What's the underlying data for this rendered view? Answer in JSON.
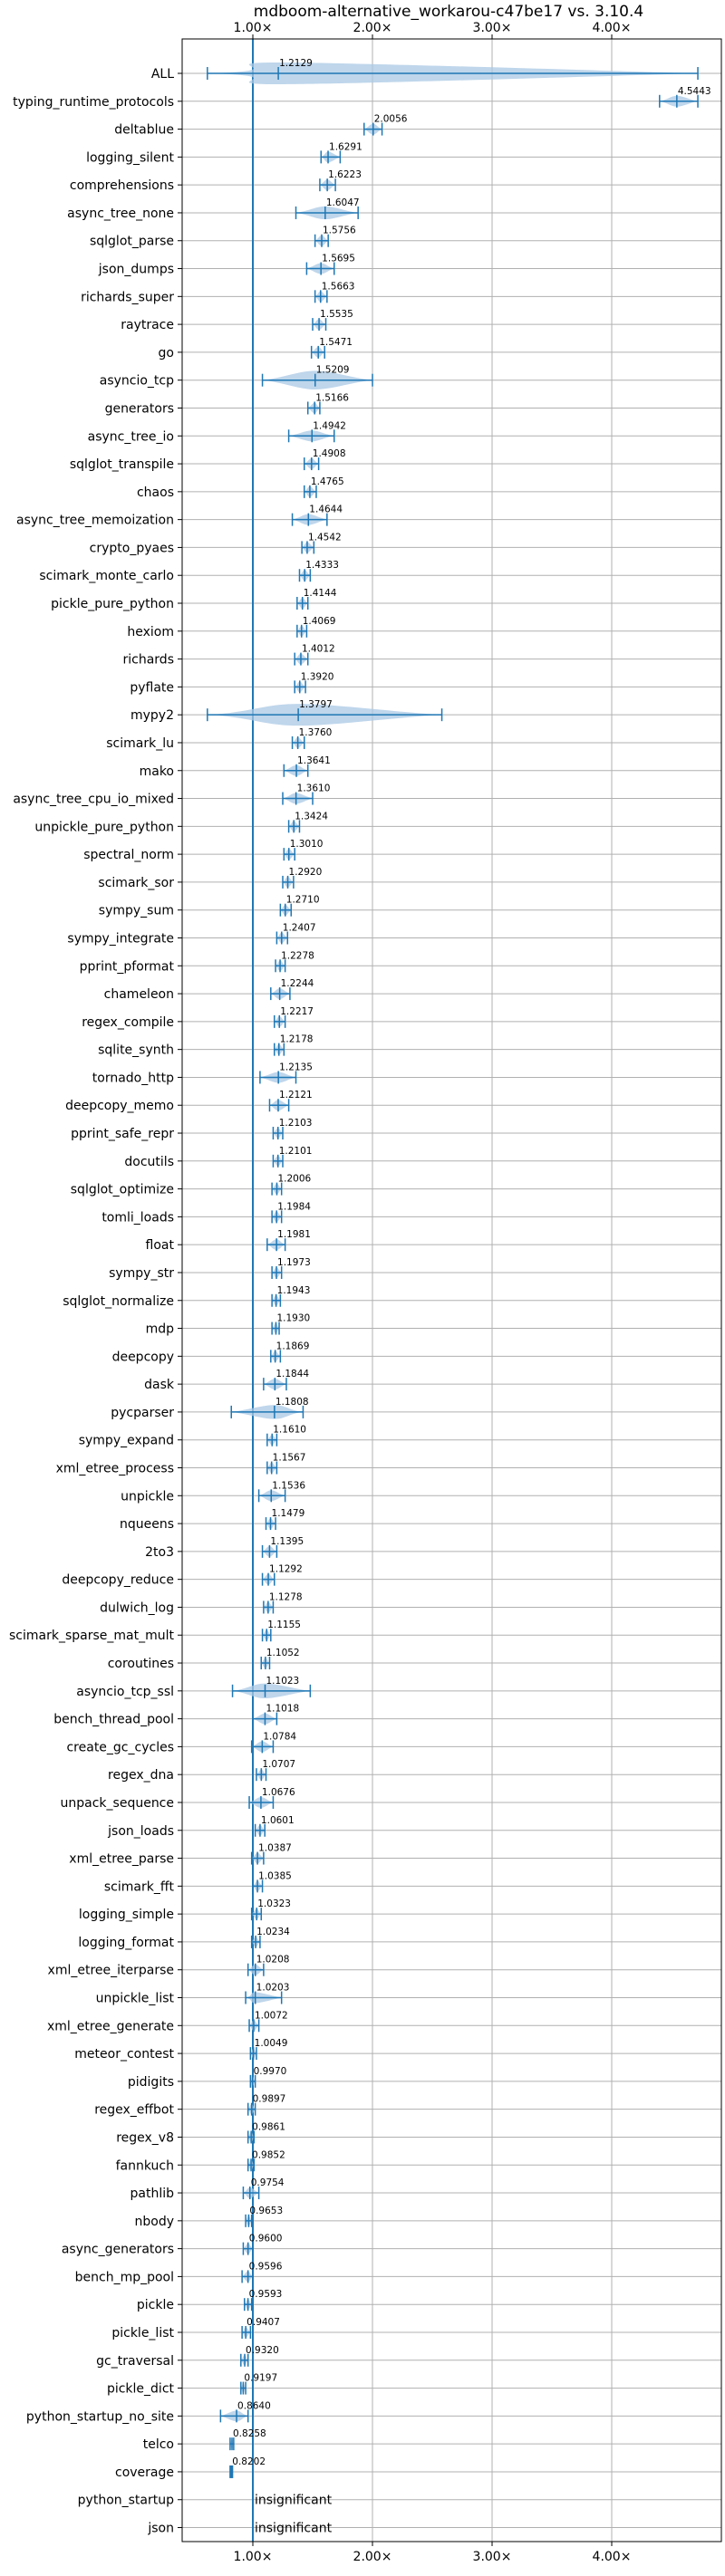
{
  "chart_data": {
    "type": "violin",
    "title": "mdboom-alternative_workarou-c47be17 vs. 3.10.4",
    "xlabel": "",
    "ylabel": "",
    "xlim": [
      0.55,
      4.6
    ],
    "x_ticks": [
      1.0,
      2.0,
      3.0,
      4.0
    ],
    "x_tick_labels": [
      "1.00×",
      "2.00×",
      "3.00×",
      "4.00×"
    ],
    "reference_line": 1.0,
    "grid": true,
    "insignificant_label": "insignificant",
    "benchmarks": [
      {
        "name": "ALL",
        "value": "1.2129",
        "center": 1.2129,
        "low": 0.62,
        "high": 4.72
      },
      {
        "name": "typing_runtime_protocols",
        "value": "4.5443",
        "center": 4.5443,
        "low": 4.4,
        "high": 4.72
      },
      {
        "name": "deltablue",
        "value": "2.0056",
        "center": 2.0056,
        "low": 1.93,
        "high": 2.08
      },
      {
        "name": "logging_silent",
        "value": "1.6291",
        "center": 1.6291,
        "low": 1.57,
        "high": 1.73
      },
      {
        "name": "comprehensions",
        "value": "1.6223",
        "center": 1.6223,
        "low": 1.56,
        "high": 1.69
      },
      {
        "name": "async_tree_none",
        "value": "1.6047",
        "center": 1.6047,
        "low": 1.36,
        "high": 1.88
      },
      {
        "name": "sqlglot_parse",
        "value": "1.5756",
        "center": 1.5756,
        "low": 1.52,
        "high": 1.63
      },
      {
        "name": "json_dumps",
        "value": "1.5695",
        "center": 1.5695,
        "low": 1.45,
        "high": 1.68
      },
      {
        "name": "richards_super",
        "value": "1.5663",
        "center": 1.5663,
        "low": 1.52,
        "high": 1.62
      },
      {
        "name": "raytrace",
        "value": "1.5535",
        "center": 1.5535,
        "low": 1.5,
        "high": 1.61
      },
      {
        "name": "go",
        "value": "1.5471",
        "center": 1.5471,
        "low": 1.49,
        "high": 1.6
      },
      {
        "name": "asyncio_tcp",
        "value": "1.5209",
        "center": 1.5209,
        "low": 1.08,
        "high": 2.0
      },
      {
        "name": "generators",
        "value": "1.5166",
        "center": 1.5166,
        "low": 1.46,
        "high": 1.56
      },
      {
        "name": "async_tree_io",
        "value": "1.4942",
        "center": 1.4942,
        "low": 1.3,
        "high": 1.68
      },
      {
        "name": "sqlglot_transpile",
        "value": "1.4908",
        "center": 1.4908,
        "low": 1.43,
        "high": 1.55
      },
      {
        "name": "chaos",
        "value": "1.4765",
        "center": 1.4765,
        "low": 1.43,
        "high": 1.53
      },
      {
        "name": "async_tree_memoization",
        "value": "1.4644",
        "center": 1.4644,
        "low": 1.33,
        "high": 1.62
      },
      {
        "name": "crypto_pyaes",
        "value": "1.4542",
        "center": 1.4542,
        "low": 1.41,
        "high": 1.51
      },
      {
        "name": "scimark_monte_carlo",
        "value": "1.4333",
        "center": 1.4333,
        "low": 1.39,
        "high": 1.48
      },
      {
        "name": "pickle_pure_python",
        "value": "1.4144",
        "center": 1.4144,
        "low": 1.37,
        "high": 1.46
      },
      {
        "name": "hexiom",
        "value": "1.4069",
        "center": 1.4069,
        "low": 1.37,
        "high": 1.45
      },
      {
        "name": "richards",
        "value": "1.4012",
        "center": 1.4012,
        "low": 1.35,
        "high": 1.46
      },
      {
        "name": "pyflate",
        "value": "1.3920",
        "center": 1.392,
        "low": 1.35,
        "high": 1.44
      },
      {
        "name": "mypy2",
        "value": "1.3797",
        "center": 1.3797,
        "low": 0.62,
        "high": 2.58
      },
      {
        "name": "scimark_lu",
        "value": "1.3760",
        "center": 1.376,
        "low": 1.33,
        "high": 1.43
      },
      {
        "name": "mako",
        "value": "1.3641",
        "center": 1.3641,
        "low": 1.26,
        "high": 1.46
      },
      {
        "name": "async_tree_cpu_io_mixed",
        "value": "1.3610",
        "center": 1.361,
        "low": 1.25,
        "high": 1.5
      },
      {
        "name": "unpickle_pure_python",
        "value": "1.3424",
        "center": 1.3424,
        "low": 1.3,
        "high": 1.39
      },
      {
        "name": "spectral_norm",
        "value": "1.3010",
        "center": 1.301,
        "low": 1.26,
        "high": 1.35
      },
      {
        "name": "scimark_sor",
        "value": "1.2920",
        "center": 1.292,
        "low": 1.25,
        "high": 1.34
      },
      {
        "name": "sympy_sum",
        "value": "1.2710",
        "center": 1.271,
        "low": 1.23,
        "high": 1.32
      },
      {
        "name": "sympy_integrate",
        "value": "1.2407",
        "center": 1.2407,
        "low": 1.2,
        "high": 1.29
      },
      {
        "name": "pprint_pformat",
        "value": "1.2278",
        "center": 1.2278,
        "low": 1.19,
        "high": 1.27
      },
      {
        "name": "chameleon",
        "value": "1.2244",
        "center": 1.2244,
        "low": 1.15,
        "high": 1.31
      },
      {
        "name": "regex_compile",
        "value": "1.2217",
        "center": 1.2217,
        "low": 1.18,
        "high": 1.27
      },
      {
        "name": "sqlite_synth",
        "value": "1.2178",
        "center": 1.2178,
        "low": 1.18,
        "high": 1.26
      },
      {
        "name": "tornado_http",
        "value": "1.2135",
        "center": 1.2135,
        "low": 1.06,
        "high": 1.36
      },
      {
        "name": "deepcopy_memo",
        "value": "1.2121",
        "center": 1.2121,
        "low": 1.14,
        "high": 1.3
      },
      {
        "name": "pprint_safe_repr",
        "value": "1.2103",
        "center": 1.2103,
        "low": 1.17,
        "high": 1.25
      },
      {
        "name": "docutils",
        "value": "1.2101",
        "center": 1.2101,
        "low": 1.17,
        "high": 1.25
      },
      {
        "name": "sqlglot_optimize",
        "value": "1.2006",
        "center": 1.2006,
        "low": 1.16,
        "high": 1.24
      },
      {
        "name": "tomli_loads",
        "value": "1.1984",
        "center": 1.1984,
        "low": 1.16,
        "high": 1.24
      },
      {
        "name": "float",
        "value": "1.1981",
        "center": 1.1981,
        "low": 1.12,
        "high": 1.27
      },
      {
        "name": "sympy_str",
        "value": "1.1973",
        "center": 1.1973,
        "low": 1.16,
        "high": 1.24
      },
      {
        "name": "sqlglot_normalize",
        "value": "1.1943",
        "center": 1.1943,
        "low": 1.16,
        "high": 1.23
      },
      {
        "name": "mdp",
        "value": "1.1930",
        "center": 1.193,
        "low": 1.16,
        "high": 1.22
      },
      {
        "name": "deepcopy",
        "value": "1.1869",
        "center": 1.1869,
        "low": 1.15,
        "high": 1.23
      },
      {
        "name": "dask",
        "value": "1.1844",
        "center": 1.1844,
        "low": 1.09,
        "high": 1.28
      },
      {
        "name": "pycparser",
        "value": "1.1808",
        "center": 1.1808,
        "low": 0.82,
        "high": 1.42
      },
      {
        "name": "sympy_expand",
        "value": "1.1610",
        "center": 1.161,
        "low": 1.12,
        "high": 1.2
      },
      {
        "name": "xml_etree_process",
        "value": "1.1567",
        "center": 1.1567,
        "low": 1.12,
        "high": 1.2
      },
      {
        "name": "unpickle",
        "value": "1.1536",
        "center": 1.1536,
        "low": 1.05,
        "high": 1.27
      },
      {
        "name": "nqueens",
        "value": "1.1479",
        "center": 1.1479,
        "low": 1.11,
        "high": 1.19
      },
      {
        "name": "2to3",
        "value": "1.1395",
        "center": 1.1395,
        "low": 1.08,
        "high": 1.2
      },
      {
        "name": "deepcopy_reduce",
        "value": "1.1292",
        "center": 1.1292,
        "low": 1.08,
        "high": 1.18
      },
      {
        "name": "dulwich_log",
        "value": "1.1278",
        "center": 1.1278,
        "low": 1.09,
        "high": 1.17
      },
      {
        "name": "scimark_sparse_mat_mult",
        "value": "1.1155",
        "center": 1.1155,
        "low": 1.08,
        "high": 1.15
      },
      {
        "name": "coroutines",
        "value": "1.1052",
        "center": 1.1052,
        "low": 1.07,
        "high": 1.14
      },
      {
        "name": "asyncio_tcp_ssl",
        "value": "1.1023",
        "center": 1.1023,
        "low": 0.83,
        "high": 1.48
      },
      {
        "name": "bench_thread_pool",
        "value": "1.1018",
        "center": 1.1018,
        "low": 1.0,
        "high": 1.2
      },
      {
        "name": "create_gc_cycles",
        "value": "1.0784",
        "center": 1.0784,
        "low": 0.99,
        "high": 1.17
      },
      {
        "name": "regex_dna",
        "value": "1.0707",
        "center": 1.0707,
        "low": 1.03,
        "high": 1.11
      },
      {
        "name": "unpack_sequence",
        "value": "1.0676",
        "center": 1.0676,
        "low": 0.97,
        "high": 1.17
      },
      {
        "name": "json_loads",
        "value": "1.0601",
        "center": 1.0601,
        "low": 1.02,
        "high": 1.1
      },
      {
        "name": "xml_etree_parse",
        "value": "1.0387",
        "center": 1.0387,
        "low": 0.99,
        "high": 1.09
      },
      {
        "name": "scimark_fft",
        "value": "1.0385",
        "center": 1.0385,
        "low": 1.0,
        "high": 1.08
      },
      {
        "name": "logging_simple",
        "value": "1.0323",
        "center": 1.0323,
        "low": 0.99,
        "high": 1.07
      },
      {
        "name": "logging_format",
        "value": "1.0234",
        "center": 1.0234,
        "low": 0.99,
        "high": 1.06
      },
      {
        "name": "xml_etree_iterparse",
        "value": "1.0208",
        "center": 1.0208,
        "low": 0.96,
        "high": 1.09
      },
      {
        "name": "unpickle_list",
        "value": "1.0203",
        "center": 1.0203,
        "low": 0.94,
        "high": 1.24
      },
      {
        "name": "xml_etree_generate",
        "value": "1.0072",
        "center": 1.0072,
        "low": 0.97,
        "high": 1.05
      },
      {
        "name": "meteor_contest",
        "value": "1.0049",
        "center": 1.0049,
        "low": 0.98,
        "high": 1.03
      },
      {
        "name": "pidigits",
        "value": "0.9970",
        "center": 0.997,
        "low": 0.98,
        "high": 1.02
      },
      {
        "name": "regex_effbot",
        "value": "0.9897",
        "center": 0.9897,
        "low": 0.96,
        "high": 1.02
      },
      {
        "name": "regex_v8",
        "value": "0.9861",
        "center": 0.9861,
        "low": 0.96,
        "high": 1.01
      },
      {
        "name": "fannkuch",
        "value": "0.9852",
        "center": 0.9852,
        "low": 0.96,
        "high": 1.01
      },
      {
        "name": "pathlib",
        "value": "0.9754",
        "center": 0.9754,
        "low": 0.92,
        "high": 1.05
      },
      {
        "name": "nbody",
        "value": "0.9653",
        "center": 0.9653,
        "low": 0.94,
        "high": 0.99
      },
      {
        "name": "async_generators",
        "value": "0.9600",
        "center": 0.96,
        "low": 0.92,
        "high": 1.0
      },
      {
        "name": "bench_mp_pool",
        "value": "0.9596",
        "center": 0.9596,
        "low": 0.91,
        "high": 1.0
      },
      {
        "name": "pickle",
        "value": "0.9593",
        "center": 0.9593,
        "low": 0.93,
        "high": 0.99
      },
      {
        "name": "pickle_list",
        "value": "0.9407",
        "center": 0.9407,
        "low": 0.91,
        "high": 0.98
      },
      {
        "name": "gc_traversal",
        "value": "0.9320",
        "center": 0.932,
        "low": 0.9,
        "high": 0.96
      },
      {
        "name": "pickle_dict",
        "value": "0.9197",
        "center": 0.9197,
        "low": 0.9,
        "high": 0.94
      },
      {
        "name": "python_startup_no_site",
        "value": "0.8640",
        "center": 0.864,
        "low": 0.73,
        "high": 0.96
      },
      {
        "name": "telco",
        "value": "0.8258",
        "center": 0.8258,
        "low": 0.81,
        "high": 0.84
      },
      {
        "name": "coverage",
        "value": "0.8202",
        "center": 0.8202,
        "low": 0.81,
        "high": 0.83
      },
      {
        "name": "python_startup",
        "value": "",
        "center": null,
        "low": null,
        "high": null
      },
      {
        "name": "json",
        "value": "",
        "center": null,
        "low": null,
        "high": null
      }
    ],
    "colors": {
      "violin_fill": "#aac8e4",
      "violin_line": "#1f77b4",
      "reference_line": "#1f77b4",
      "grid": "#b0b0b0",
      "axes": "#000000"
    }
  }
}
